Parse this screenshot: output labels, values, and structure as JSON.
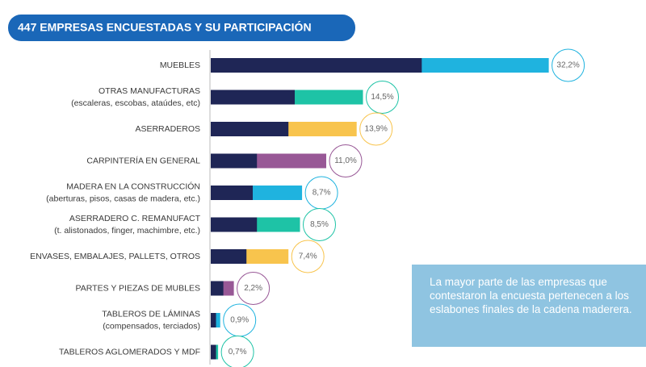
{
  "chart_data": {
    "type": "bar",
    "title": "447 EMPRESAS ENCUESTADAS Y SU PARTICIPACIÓN",
    "categories": [
      [
        "MUEBLES"
      ],
      [
        "OTRAS MANUFACTURAS",
        "(escaleras, escobas, ataúdes, etc)"
      ],
      [
        "ASERRADEROS"
      ],
      [
        "CARPINTERÍA EN GENERAL"
      ],
      [
        "MADERA EN LA CONSTRUCCIÓN",
        "(aberturas, pisos, casas de madera, etc.)"
      ],
      [
        "ASERRADERO C. REMANUFACT",
        "(t. alistonados, finger, machimbre, etc.)"
      ],
      [
        "ENVASES, EMBALAJES, PALLETS, OTROS"
      ],
      [
        "PARTES Y PIEZAS DE MUBLES"
      ],
      [
        "TABLEROS DE LÁMINAS",
        "(compensados, terciados)"
      ],
      [
        "TABLEROS AGLOMERADOS Y MDF"
      ]
    ],
    "values": [
      32.2,
      14.5,
      13.9,
      11.0,
      8.7,
      8.5,
      7.4,
      2.2,
      0.9,
      0.7
    ],
    "value_labels": [
      "32,2%",
      "14,5%",
      "13,9%",
      "11,0%",
      "8,7%",
      "8,5%",
      "7,4%",
      "2,2%",
      "0,9%",
      "0,7%"
    ],
    "colors": [
      "#1fb3df",
      "#1ec3a6",
      "#f8c44d",
      "#985896",
      "#1fb3df",
      "#1ec3a6",
      "#f8c44d",
      "#985896",
      "#1fb3df",
      "#1ec3a6"
    ],
    "dark_values": [
      20.1,
      8.0,
      7.4,
      4.4,
      4.0,
      4.4,
      3.4,
      1.2,
      0.5,
      0.5
    ],
    "dark_color": "#1f2656",
    "note": "La mayor parte de las empresas que contestaron la encuesta pertenecen a los eslabones finales de la cadena maderera."
  }
}
